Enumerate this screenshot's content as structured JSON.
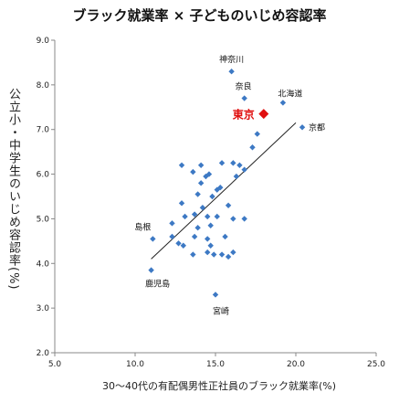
{
  "title": "ブラック就業率 × 子どものいじめ容認率",
  "chart_data": {
    "type": "scatter",
    "title": "ブラック就業率 × 子どものいじめ容認率",
    "xlabel": "30～40代の有配偶男性正社員のブラック就業率(%)",
    "ylabel": "公立小・中学生のいじめ容認率(%)",
    "xlim": [
      5.0,
      25.0
    ],
    "ylim": [
      2.0,
      9.0
    ],
    "xticks": [
      "5.0",
      "10.0",
      "15.0",
      "20.0",
      "25.0"
    ],
    "yticks": [
      "2.0",
      "3.0",
      "4.0",
      "5.0",
      "6.0",
      "7.0",
      "8.0",
      "9.0"
    ],
    "grid": false,
    "points": [
      [
        16.0,
        8.3
      ],
      [
        16.8,
        7.7
      ],
      [
        19.2,
        7.6
      ],
      [
        20.4,
        7.05
      ],
      [
        17.6,
        6.9
      ],
      [
        17.3,
        6.6
      ],
      [
        16.1,
        6.25
      ],
      [
        16.5,
        6.2
      ],
      [
        16.8,
        6.1
      ],
      [
        15.4,
        6.25
      ],
      [
        12.9,
        6.2
      ],
      [
        13.6,
        6.05
      ],
      [
        14.1,
        6.2
      ],
      [
        14.4,
        5.95
      ],
      [
        14.6,
        6.0
      ],
      [
        16.3,
        5.95
      ],
      [
        14.1,
        5.8
      ],
      [
        13.9,
        5.55
      ],
      [
        14.8,
        5.5
      ],
      [
        15.3,
        5.7
      ],
      [
        15.1,
        5.65
      ],
      [
        12.9,
        5.35
      ],
      [
        14.2,
        5.25
      ],
      [
        15.8,
        5.3
      ],
      [
        13.1,
        5.05
      ],
      [
        13.7,
        5.1
      ],
      [
        14.5,
        5.05
      ],
      [
        15.1,
        5.05
      ],
      [
        16.1,
        5.0
      ],
      [
        16.8,
        5.0
      ],
      [
        12.3,
        4.9
      ],
      [
        13.9,
        4.8
      ],
      [
        14.7,
        4.85
      ],
      [
        14.5,
        4.55
      ],
      [
        12.7,
        4.45
      ],
      [
        11.1,
        4.55
      ],
      [
        12.3,
        4.6
      ],
      [
        13.7,
        4.6
      ],
      [
        15.6,
        4.6
      ],
      [
        13.0,
        4.4
      ],
      [
        14.7,
        4.4
      ],
      [
        15.4,
        4.2
      ],
      [
        14.5,
        4.25
      ],
      [
        13.6,
        4.2
      ],
      [
        15.8,
        4.15
      ],
      [
        16.1,
        4.25
      ],
      [
        14.9,
        4.2
      ],
      [
        11.0,
        3.85
      ],
      [
        15.0,
        3.3
      ]
    ],
    "highlight": {
      "label": "東京",
      "x": 18.0,
      "y": 7.35,
      "color": "#e01010"
    },
    "labels": [
      {
        "text": "神奈川",
        "x": 16.0,
        "y": 8.3
      },
      {
        "text": "奈良",
        "x": 16.8,
        "y": 7.7
      },
      {
        "text": "北海道",
        "x": 19.2,
        "y": 7.6
      },
      {
        "text": "京都",
        "x": 20.4,
        "y": 7.05
      },
      {
        "text": "島根",
        "x": 11.1,
        "y": 4.55
      },
      {
        "text": "鹿児島",
        "x": 11.0,
        "y": 3.85
      },
      {
        "text": "宮崎",
        "x": 15.0,
        "y": 3.3
      }
    ],
    "trendline": {
      "x": [
        11.0,
        20.0
      ],
      "y": [
        4.1,
        7.15
      ]
    },
    "colors": {
      "points": "#3d79c4",
      "trendline": "#222222",
      "axis": "#888888"
    }
  }
}
